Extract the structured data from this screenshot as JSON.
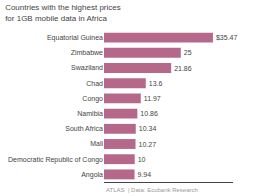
{
  "chart_data": {
    "type": "bar",
    "orientation": "horizontal",
    "title": "Countries with the highest prices for 1GB mobile data in Africa",
    "annotations": [
      "ATLAS  | Data: Ecobank Research"
    ],
    "categories": [
      "Equatorial Guinea",
      "Zimbabwe",
      "Swaziland",
      "Chad",
      "Congo",
      "Namibia",
      "South Africa",
      "Mali",
      "Democratic Republic of Congo",
      "Angola"
    ],
    "values": [
      35.47,
      25,
      21.86,
      13.6,
      11.97,
      10.86,
      10.34,
      10.27,
      10,
      9.94
    ],
    "value_labels": [
      "$35.47",
      "25",
      "21.86",
      "13.6",
      "11.97",
      "10.86",
      "10.34",
      "10.27",
      "10",
      "9.94"
    ],
    "data_labels": true,
    "color": "#b5688a",
    "xlim": [
      0,
      42
    ],
    "tick_labels": "y",
    "grid": false
  }
}
